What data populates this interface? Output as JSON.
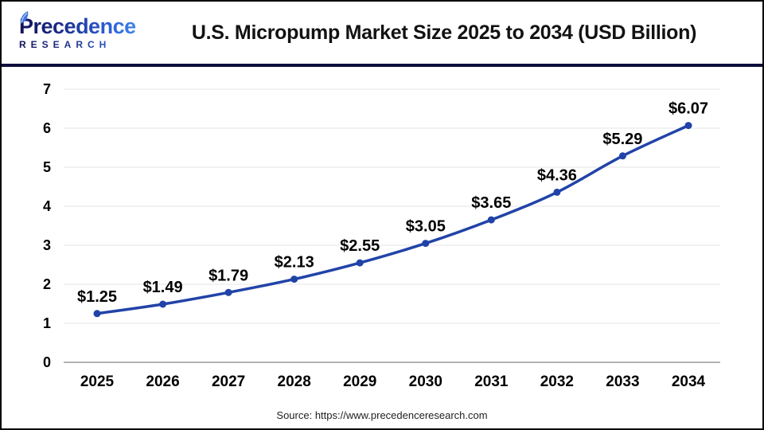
{
  "header": {
    "logo": {
      "line1": "Precedence",
      "line2": "RESEARCH"
    },
    "title": "U.S. Micropump Market Size 2025 to 2034 (USD Billion)"
  },
  "footer": {
    "source": "Source: https://www.precedenceresearch.com"
  },
  "colors": {
    "brand_navy": "#12125a",
    "brand_blue": "#2f63da",
    "separator": "#0d0d3d",
    "frame_border": "#050505"
  },
  "icons": {
    "leaf": "leaf-icon"
  },
  "chart_data": {
    "type": "line",
    "title": "U.S. Micropump Market Size 2025 to 2034 (USD Billion)",
    "xlabel": "",
    "ylabel": "",
    "categories": [
      "2025",
      "2026",
      "2027",
      "2028",
      "2029",
      "2030",
      "2031",
      "2032",
      "2033",
      "2034"
    ],
    "series": [
      {
        "name": "U.S. Micropump Market Size (USD Billion)",
        "values": [
          1.25,
          1.49,
          1.79,
          2.13,
          2.55,
          3.05,
          3.65,
          4.36,
          5.29,
          6.07
        ],
        "labels": [
          "$1.25",
          "$1.49",
          "$1.79",
          "$2.13",
          "$2.55",
          "$3.05",
          "$3.65",
          "$4.36",
          "$5.29",
          "$6.07"
        ]
      }
    ],
    "ylim": [
      0,
      7
    ],
    "yticks": [
      0,
      1,
      2,
      3,
      4,
      5,
      6,
      7
    ],
    "grid": true,
    "legend": false,
    "line_color": "#2143a8",
    "point_color": "#2143a8",
    "grid_color": "#ededed",
    "axis_color": "#b3b3b3",
    "tick_color": "#000000",
    "data_label_color": "#000000"
  }
}
